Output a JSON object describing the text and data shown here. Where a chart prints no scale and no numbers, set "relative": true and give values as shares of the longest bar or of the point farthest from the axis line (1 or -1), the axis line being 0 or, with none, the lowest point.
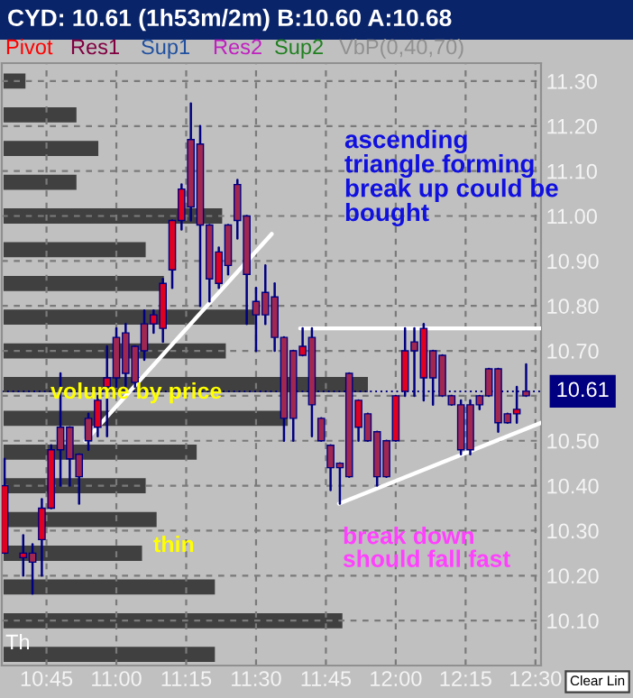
{
  "chart_data": [
    {
      "type": "candlestick",
      "title": "CYD: 10.61 (1h53m/2m) B:10.60 A:10.68",
      "x": [
        10.6,
        10.6667,
        10.7,
        10.7333,
        10.7667,
        10.8,
        10.8333,
        10.8667,
        10.9,
        10.9333,
        10.9667,
        11.0,
        11.0333,
        11.0667,
        11.1,
        11.1333,
        11.1667,
        11.2,
        11.2333,
        11.2667,
        11.3,
        11.3333,
        11.3667,
        11.4,
        11.4333,
        11.4667,
        11.5,
        11.5333,
        11.5667,
        11.6,
        11.6333,
        11.6667,
        11.7,
        11.7333,
        11.7667,
        11.8,
        11.8333,
        11.8667,
        11.9,
        11.9333,
        11.9667,
        12.0,
        12.0333,
        12.0667,
        12.1,
        12.1333,
        12.1667,
        12.2,
        12.2333,
        12.2667,
        12.3,
        12.3333,
        12.3667,
        12.4,
        12.4333,
        12.4667
      ],
      "ohlc": [
        [
          10.25,
          10.46,
          10.25,
          10.4
        ],
        [
          10.24,
          10.29,
          10.2,
          10.25
        ],
        [
          10.25,
          10.27,
          10.16,
          10.23
        ],
        [
          10.28,
          10.37,
          10.2,
          10.35
        ],
        [
          10.35,
          10.49,
          10.35,
          10.48
        ],
        [
          10.53,
          10.65,
          10.4,
          10.48
        ],
        [
          10.53,
          10.53,
          10.4,
          10.46
        ],
        [
          10.47,
          10.47,
          10.36,
          10.42
        ],
        [
          10.55,
          10.56,
          10.48,
          10.5
        ],
        [
          10.53,
          10.6,
          10.51,
          10.59
        ],
        [
          10.62,
          10.71,
          10.51,
          10.64
        ],
        [
          10.73,
          10.75,
          10.62,
          10.64
        ],
        [
          10.74,
          10.76,
          10.62,
          10.65
        ],
        [
          10.71,
          10.71,
          10.62,
          10.63
        ],
        [
          10.76,
          10.79,
          10.68,
          10.7
        ],
        [
          10.76,
          10.79,
          10.74,
          10.78
        ],
        [
          10.75,
          10.86,
          10.72,
          10.85
        ],
        [
          10.88,
          10.99,
          10.84,
          10.99
        ],
        [
          10.99,
          11.07,
          10.97,
          11.06
        ],
        [
          11.17,
          11.25,
          10.99,
          11.02
        ],
        [
          11.16,
          11.2,
          10.8,
          10.98
        ],
        [
          10.98,
          10.98,
          10.81,
          10.86
        ],
        [
          10.85,
          10.93,
          10.84,
          10.92
        ],
        [
          10.98,
          10.98,
          10.87,
          10.89
        ],
        [
          11.07,
          11.08,
          10.95,
          10.99
        ],
        [
          11.0,
          11.0,
          10.76,
          10.87
        ],
        [
          10.81,
          10.84,
          10.7,
          10.78
        ],
        [
          10.83,
          10.89,
          10.76,
          10.78
        ],
        [
          10.82,
          10.85,
          10.7,
          10.73
        ],
        [
          10.73,
          10.73,
          10.5,
          10.55
        ],
        [
          10.7,
          10.7,
          10.5,
          10.55
        ],
        [
          10.69,
          10.75,
          10.69,
          10.71
        ],
        [
          10.73,
          10.75,
          10.51,
          10.58
        ],
        [
          10.55,
          10.55,
          10.5,
          10.5
        ],
        [
          10.49,
          10.49,
          10.39,
          10.44
        ],
        [
          10.45,
          10.45,
          10.36,
          10.44
        ],
        [
          10.65,
          10.65,
          10.42,
          10.42
        ],
        [
          10.53,
          10.59,
          10.5,
          10.59
        ],
        [
          10.56,
          10.56,
          10.5,
          10.5
        ],
        [
          10.52,
          10.52,
          10.4,
          10.42
        ],
        [
          10.5,
          10.5,
          10.42,
          10.42
        ],
        [
          10.5,
          10.6,
          10.5,
          10.6
        ],
        [
          10.61,
          10.75,
          10.6,
          10.7
        ],
        [
          10.72,
          10.75,
          10.6,
          10.7
        ],
        [
          10.64,
          10.76,
          10.59,
          10.75
        ],
        [
          10.7,
          10.7,
          10.58,
          10.64
        ],
        [
          10.69,
          10.69,
          10.6,
          10.6
        ],
        [
          10.6,
          10.6,
          10.58,
          10.58
        ],
        [
          10.58,
          10.59,
          10.47,
          10.48
        ],
        [
          10.58,
          10.59,
          10.47,
          10.48
        ],
        [
          10.6,
          10.6,
          10.57,
          10.58
        ],
        [
          10.66,
          10.66,
          10.6,
          10.6
        ],
        [
          10.66,
          10.66,
          10.52,
          10.54
        ],
        [
          10.56,
          10.56,
          10.54,
          10.54
        ],
        [
          10.56,
          10.62,
          10.54,
          10.57
        ],
        [
          10.61,
          10.67,
          10.6,
          10.6
        ]
      ],
      "colors": [
        "#e00020",
        "#e00020",
        "#a02850",
        "#e00020",
        "#e00020",
        "#a02850",
        "#a02850",
        "#a02850",
        "#a02850",
        "#e00020",
        "#e00020",
        "#a02850",
        "#a02850",
        "#a02850",
        "#a02850",
        "#e00020",
        "#e00020",
        "#e00020",
        "#e00020",
        "#a02850",
        "#a02850",
        "#a02850",
        "#e00020",
        "#a02850",
        "#a02850",
        "#a02850",
        "#a02850",
        "#a02850",
        "#a02850",
        "#a02850",
        "#a02850",
        "#e00020",
        "#a02850",
        "#a02850",
        "#a02850",
        "#a02850",
        "#a02850",
        "#e00020",
        "#a02850",
        "#a02850",
        "#a02850",
        "#e00020",
        "#e00020",
        "#a02850",
        "#e00020",
        "#a02850",
        "#a02850",
        "#a02850",
        "#a02850",
        "#a02850",
        "#a02850",
        "#a02850",
        "#a02850",
        "#a02850",
        "#e00020",
        "#a02850"
      ],
      "series": [
        {
          "type": "line",
          "color": "#ffffff",
          "x": [
            10.889,
            11.556
          ],
          "values": [
            10.5,
            10.96
          ]
        },
        {
          "type": "line",
          "color": "#ffffff",
          "x": [
            11.658,
            12.52
          ],
          "values": [
            10.75,
            10.75
          ]
        },
        {
          "type": "line",
          "color": "#ffffff",
          "x": [
            11.797,
            12.52
          ],
          "values": [
            10.36,
            10.54
          ]
        }
      ],
      "xlim": [
        10.59,
        12.52
      ],
      "ylim": [
        10.0,
        11.34
      ],
      "xticks": [
        {
          "value": 10.75,
          "label": "10:45"
        },
        {
          "value": 11.0,
          "label": "11:00"
        },
        {
          "value": 11.25,
          "label": "11:15"
        },
        {
          "value": 11.5,
          "label": "11:30"
        },
        {
          "value": 11.75,
          "label": "11:45"
        },
        {
          "value": 12.0,
          "label": "12:00"
        },
        {
          "value": 12.25,
          "label": "12:15"
        },
        {
          "value": 12.5,
          "label": "12:30"
        }
      ],
      "yticks": [
        {
          "value": 10.1,
          "label": "10.10"
        },
        {
          "value": 10.2,
          "label": "10.20"
        },
        {
          "value": 10.3,
          "label": "10.30"
        },
        {
          "value": 10.4,
          "label": "10.40"
        },
        {
          "value": 10.5,
          "label": "10.50"
        },
        {
          "value": 10.6,
          "label": null
        },
        {
          "value": 10.7,
          "label": "10.70"
        },
        {
          "value": 10.8,
          "label": "10.80"
        },
        {
          "value": 10.9,
          "label": "10.90"
        },
        {
          "value": 11.0,
          "label": "11.00"
        },
        {
          "value": 11.1,
          "label": "11.10"
        },
        {
          "value": 11.2,
          "label": "11.20"
        },
        {
          "value": 11.3,
          "label": "11.30"
        }
      ],
      "grid": true,
      "ref_lines": [
        {
          "axis": "y",
          "value": 10.61,
          "label": "10.61",
          "color": "#000080"
        }
      ],
      "annotations": [
        "Pivot",
        "Res1",
        "Sup1",
        "Res2",
        "Sup2",
        "VbP(0,40,70)",
        "ascending\ntriangle forming\nbreak up could be\nbought",
        "volume by price",
        "thin",
        "break down\nshould fall fast",
        "Th",
        "Clear Lin"
      ]
    },
    {
      "type": "bar",
      "orientation": "horizontal",
      "relative": true,
      "color": "#404040",
      "categories": [
        null,
        null,
        null,
        null,
        null,
        null,
        null,
        null,
        null,
        null,
        null,
        null,
        null,
        null,
        null,
        null,
        null,
        null
      ],
      "values": [
        0.06,
        0.2,
        0.26,
        0.2,
        0.6,
        0.39,
        0.44,
        0.69,
        0.61,
        1,
        0.78,
        0.53,
        0.39,
        0.42,
        0.38,
        0.58,
        0.93,
        0.58
      ]
    }
  ]
}
